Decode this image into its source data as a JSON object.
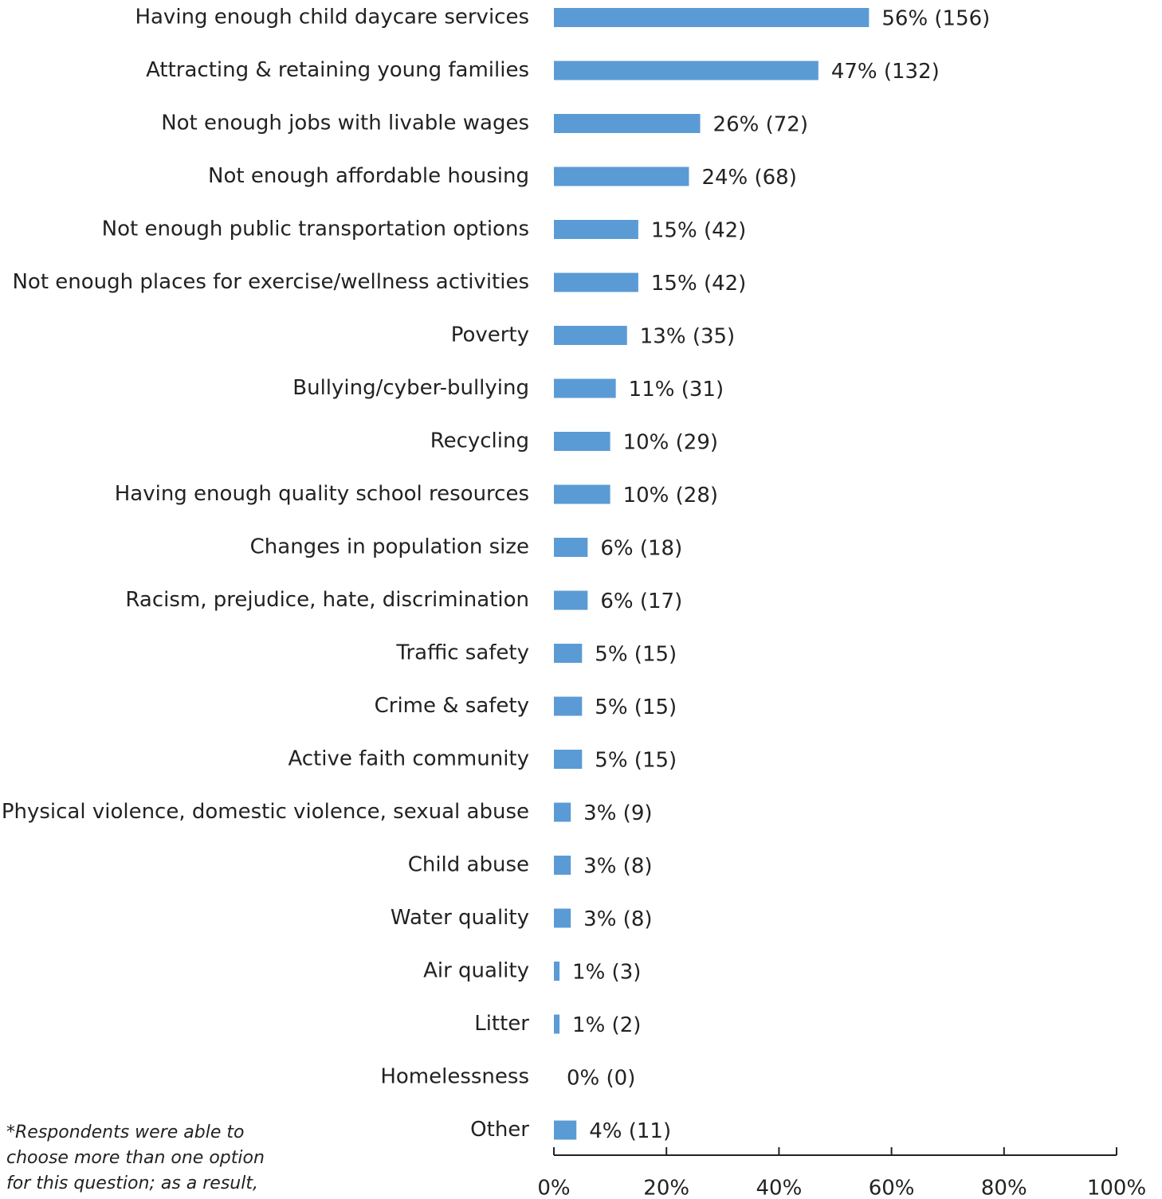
{
  "chart_data": {
    "type": "bar",
    "orientation": "horizontal",
    "categories": [
      "Having enough child daycare services",
      "Attracting & retaining young families",
      "Not enough jobs with livable wages",
      "Not enough affordable housing",
      "Not enough public transportation options",
      "Not enough places for exercise/wellness activities",
      "Poverty",
      "Bullying/cyber-bullying",
      "Recycling",
      "Having enough quality school resources",
      "Changes in population size",
      "Racism, prejudice, hate, discrimination",
      "Traffic safety",
      "Crime & safety",
      "Active faith community",
      "Physical violence, domestic violence, sexual abuse",
      "Child abuse",
      "Water quality",
      "Air quality",
      "Litter",
      "Homelessness",
      "Other"
    ],
    "values": [
      56,
      47,
      26,
      24,
      15,
      15,
      13,
      11,
      10,
      10,
      6,
      6,
      5,
      5,
      5,
      3,
      3,
      3,
      1,
      1,
      0,
      4
    ],
    "value_labels": [
      "56% (156)",
      "47% (132)",
      "26% (72)",
      "24% (68)",
      "15% (42)",
      "15% (42)",
      "13% (35)",
      "11% (31)",
      "10% (29)",
      "10% (28)",
      "6% (18)",
      "6% (17)",
      "5% (15)",
      "5% (15)",
      "5% (15)",
      "3% (9)",
      "3% (8)",
      "3% (8)",
      "1% (3)",
      "1% (2)",
      "0% (0)",
      "4% (11)"
    ],
    "color": "#5b9bd5",
    "xlim": [
      0,
      100
    ],
    "xticks": [
      {
        "value": 0,
        "label": "0%"
      },
      {
        "value": 20,
        "label": "20%"
      },
      {
        "value": 40,
        "label": "40%"
      },
      {
        "value": 60,
        "label": "60%"
      },
      {
        "value": 80,
        "label": "80%"
      },
      {
        "value": 100,
        "label": "100%"
      }
    ],
    "grid": false,
    "footnote": [
      "*Respondents were able to",
      "choose more than one option",
      "for this question; as a result,"
    ]
  }
}
